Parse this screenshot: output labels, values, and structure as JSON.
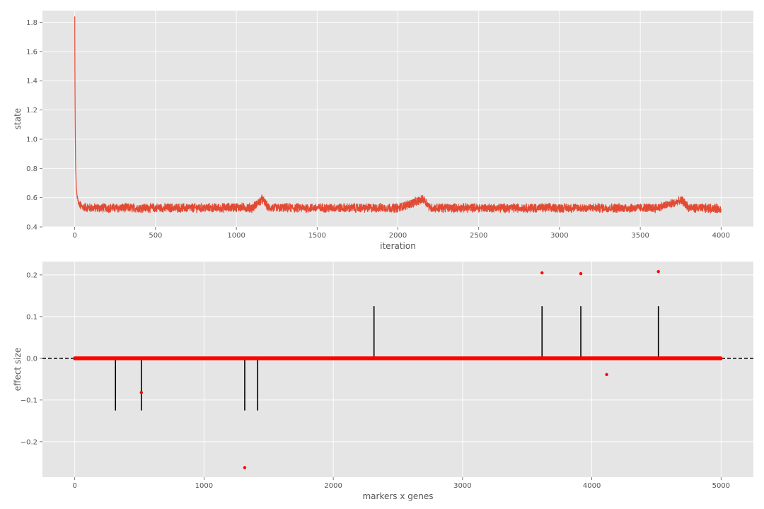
{
  "colors": {
    "axes_background": "#e5e5e5",
    "grid": "#ffffff",
    "trace_line": "#e24a33",
    "marker": "#ff0000",
    "stem": "#000000",
    "zero_line": "#000000",
    "text": "#555555"
  },
  "chart_data": [
    {
      "type": "line",
      "title": "",
      "xlabel": "iteration",
      "ylabel": "state",
      "xlim": [
        -200,
        4200
      ],
      "ylim": [
        0.4,
        1.88
      ],
      "xticks": [
        0,
        500,
        1000,
        1500,
        2000,
        2500,
        3000,
        3500,
        4000
      ],
      "yticks": [
        0.4,
        0.6,
        0.8,
        1.0,
        1.2,
        1.4,
        1.6,
        1.8
      ],
      "ytick_labels": [
        "0.4",
        "0.6",
        "0.8",
        "1.0",
        "1.2",
        "1.4",
        "1.6",
        "1.8"
      ],
      "grid": true,
      "series": [
        {
          "color": "#e24a33",
          "n_iterations": 4000,
          "x": [
            0,
            1,
            2,
            3,
            4,
            5,
            6,
            8,
            10,
            13,
            16,
            20,
            25,
            30,
            40,
            60,
            100,
            200,
            300,
            400,
            500,
            700,
            900,
            1000,
            1100,
            1160,
            1200,
            1400,
            1600,
            1800,
            2000,
            2160,
            2200,
            2400,
            2600,
            2800,
            3000,
            3200,
            3400,
            3600,
            3760,
            3800,
            4000
          ],
          "y": [
            1.84,
            1.45,
            1.22,
            1.05,
            0.93,
            0.85,
            0.79,
            0.72,
            0.66,
            0.62,
            0.6,
            0.58,
            0.56,
            0.55,
            0.54,
            0.535,
            0.53,
            0.53,
            0.53,
            0.53,
            0.53,
            0.53,
            0.53,
            0.535,
            0.53,
            0.59,
            0.53,
            0.53,
            0.53,
            0.53,
            0.53,
            0.59,
            0.53,
            0.53,
            0.53,
            0.53,
            0.53,
            0.53,
            0.53,
            0.53,
            0.58,
            0.53,
            0.525
          ],
          "noise_band": [
            0.48,
            0.58
          ]
        }
      ]
    },
    {
      "type": "scatter",
      "title": "",
      "xlabel": "markers x genes",
      "ylabel": "effect size",
      "xlim": [
        -250,
        5250
      ],
      "ylim": [
        -0.285,
        0.232
      ],
      "xticks": [
        0,
        1000,
        2000,
        3000,
        4000,
        5000
      ],
      "yticks": [
        -0.2,
        -0.1,
        0.0,
        0.1,
        0.2
      ],
      "ytick_labels": [
        "−0.2",
        "−0.1",
        "0.0",
        "0.1",
        "0.2"
      ],
      "grid": true,
      "zero_line": {
        "y": 0,
        "style": "dashed"
      },
      "n_points": 5000,
      "true_effects": {
        "x": [
          315,
          515,
          1315,
          1415,
          2315,
          3615,
          3915,
          4515
        ],
        "y": [
          -0.125,
          -0.125,
          -0.125,
          -0.125,
          0.125,
          0.125,
          0.125,
          0.125
        ]
      },
      "estimated_nonzero": {
        "x": [
          515,
          1315,
          3615,
          3915,
          4115,
          4515
        ],
        "y": [
          -0.082,
          -0.262,
          0.205,
          0.203,
          -0.039,
          0.208
        ]
      }
    }
  ]
}
